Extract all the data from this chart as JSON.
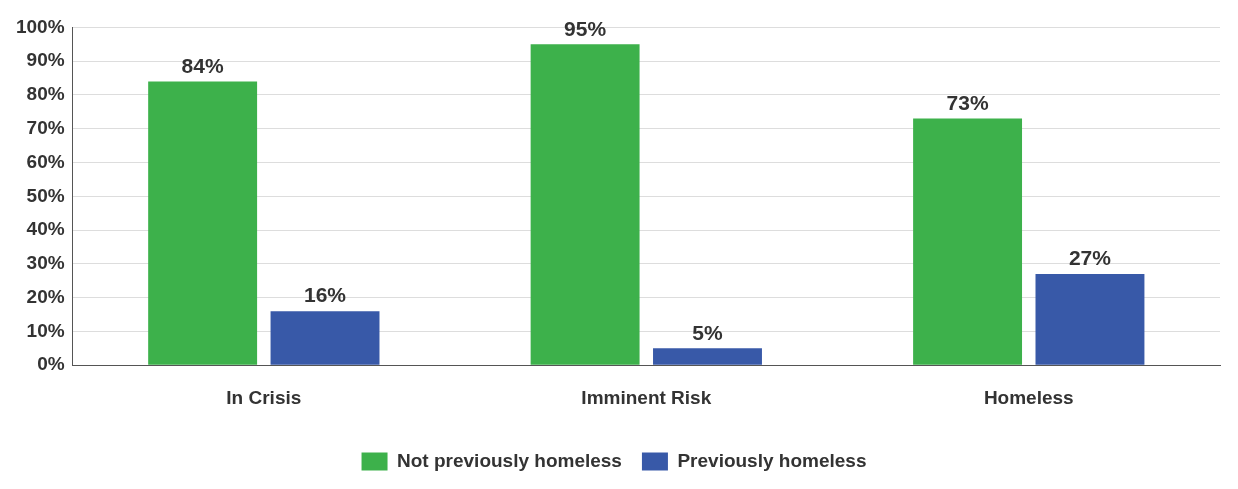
{
  "chart_data": {
    "type": "bar",
    "categories": [
      "In Crisis",
      "Imminent Risk",
      "Homeless"
    ],
    "series": [
      {
        "name": "Not previously homeless",
        "color": "#3db14b",
        "values": [
          84,
          95,
          73
        ],
        "value_labels": [
          "84%",
          "95%",
          "73%"
        ]
      },
      {
        "name": "Previously homeless",
        "color": "#3859a8",
        "values": [
          16,
          5,
          27
        ],
        "value_labels": [
          "16%",
          "5%",
          "27%"
        ]
      }
    ],
    "ylim": [
      0,
      100
    ],
    "yticks": [
      {
        "value": 0,
        "label": "0%"
      },
      {
        "value": 10,
        "label": "10%"
      },
      {
        "value": 20,
        "label": "20%"
      },
      {
        "value": 30,
        "label": "30%"
      },
      {
        "value": 40,
        "label": "40%"
      },
      {
        "value": 50,
        "label": "50%"
      },
      {
        "value": 60,
        "label": "60%"
      },
      {
        "value": 70,
        "label": "70%"
      },
      {
        "value": 80,
        "label": "80%"
      },
      {
        "value": 90,
        "label": "90%"
      },
      {
        "value": 100,
        "label": "100%"
      }
    ],
    "grid": "y",
    "legend": "bottom"
  }
}
